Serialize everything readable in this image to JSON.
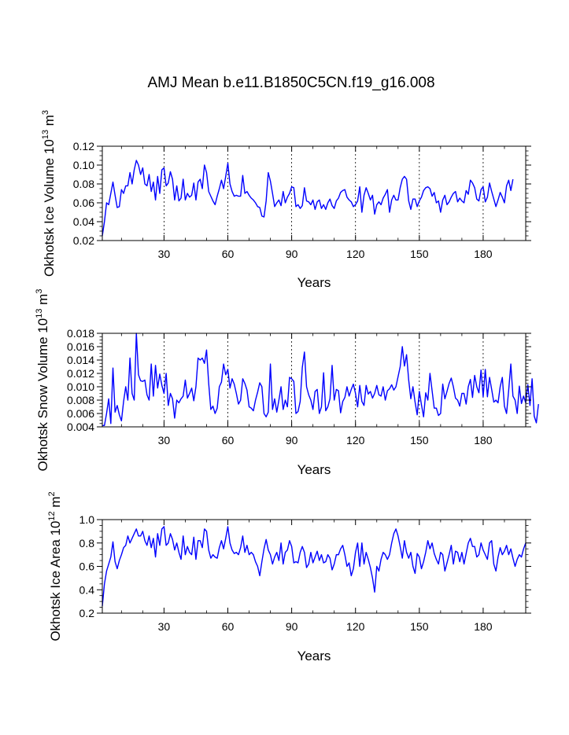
{
  "title": "AMJ Mean b.e11.B1850C5CN.f19_g16.008",
  "chart_data": [
    {
      "type": "line",
      "name": "ice-volume",
      "xlabel": "Years",
      "ylabel": "Okhotsk Ice Volume 10",
      "ylabel_exp": "13",
      "ylabel_unit": "m",
      "ylabel_unit_exp": "3",
      "xlim": [
        1,
        200
      ],
      "ylim": [
        0.02,
        0.12
      ],
      "xticks": [
        30,
        60,
        90,
        120,
        150,
        180
      ],
      "xtick_labels": [
        "30",
        "60",
        "90",
        "120",
        "150",
        "180"
      ],
      "yticks": [
        0.02,
        0.04,
        0.06,
        0.08,
        0.1,
        0.12
      ],
      "ytick_labels": [
        "0.02",
        "0.04",
        "0.06",
        "0.08",
        "0.10",
        "0.12"
      ],
      "color": "#0000ff",
      "x_start": 1,
      "values": [
        0.025,
        0.04,
        0.06,
        0.058,
        0.07,
        0.082,
        0.068,
        0.055,
        0.056,
        0.074,
        0.07,
        0.078,
        0.078,
        0.092,
        0.08,
        0.095,
        0.105,
        0.1,
        0.09,
        0.097,
        0.08,
        0.078,
        0.09,
        0.072,
        0.082,
        0.063,
        0.088,
        0.07,
        0.095,
        0.097,
        0.078,
        0.081,
        0.093,
        0.085,
        0.063,
        0.078,
        0.062,
        0.065,
        0.085,
        0.063,
        0.07,
        0.066,
        0.068,
        0.081,
        0.063,
        0.082,
        0.085,
        0.075,
        0.1,
        0.092,
        0.072,
        0.067,
        0.062,
        0.058,
        0.067,
        0.075,
        0.084,
        0.075,
        0.088,
        0.102,
        0.08,
        0.072,
        0.067,
        0.068,
        0.067,
        0.067,
        0.089,
        0.07,
        0.072,
        0.068,
        0.065,
        0.063,
        0.06,
        0.056,
        0.055,
        0.046,
        0.045,
        0.062,
        0.092,
        0.083,
        0.07,
        0.056,
        0.06,
        0.063,
        0.057,
        0.072,
        0.06,
        0.066,
        0.07,
        0.077,
        0.076,
        0.056,
        0.058,
        0.054,
        0.057,
        0.076,
        0.062,
        0.061,
        0.058,
        0.063,
        0.053,
        0.061,
        0.063,
        0.054,
        0.058,
        0.053,
        0.06,
        0.064,
        0.057,
        0.054,
        0.062,
        0.065,
        0.071,
        0.073,
        0.074,
        0.066,
        0.063,
        0.061,
        0.056,
        0.058,
        0.062,
        0.077,
        0.05,
        0.068,
        0.076,
        0.07,
        0.063,
        0.068,
        0.048,
        0.058,
        0.061,
        0.058,
        0.065,
        0.069,
        0.074,
        0.05,
        0.063,
        0.068,
        0.063,
        0.063,
        0.076,
        0.085,
        0.088,
        0.085,
        0.062,
        0.053,
        0.064,
        0.064,
        0.056,
        0.062,
        0.066,
        0.073,
        0.076,
        0.077,
        0.075,
        0.067,
        0.071,
        0.06,
        0.062,
        0.05,
        0.063,
        0.068,
        0.058,
        0.061,
        0.066,
        0.07,
        0.072,
        0.061,
        0.065,
        0.062,
        0.06,
        0.073,
        0.069,
        0.084,
        0.081,
        0.076,
        0.064,
        0.062,
        0.074,
        0.077,
        0.061,
        0.066,
        0.081,
        0.072,
        0.064,
        0.056,
        0.063,
        0.071,
        0.066,
        0.06,
        0.078,
        0.084,
        0.073,
        0.085
      ],
      "gridlines": "dashed vertical at x ticks"
    },
    {
      "type": "line",
      "name": "snow-volume",
      "xlabel": "Years",
      "ylabel": "Okhotsk Snow Volume 10",
      "ylabel_exp": "13",
      "ylabel_unit": "m",
      "ylabel_unit_exp": "3",
      "xlim": [
        1,
        200
      ],
      "ylim": [
        0.004,
        0.018
      ],
      "xticks": [
        30,
        60,
        90,
        120,
        150,
        180
      ],
      "xtick_labels": [
        "30",
        "60",
        "90",
        "120",
        "150",
        "180"
      ],
      "yticks": [
        0.004,
        0.006,
        0.008,
        0.01,
        0.012,
        0.014,
        0.016,
        0.018
      ],
      "ytick_labels": [
        "0.004",
        "0.006",
        "0.008",
        "0.010",
        "0.012",
        "0.014",
        "0.016",
        "0.018"
      ],
      "color": "#0000ff",
      "x_start": 1,
      "values": [
        0.0042,
        0.0042,
        0.006,
        0.0082,
        0.0045,
        0.0128,
        0.0062,
        0.0072,
        0.0058,
        0.0049,
        0.0078,
        0.01,
        0.008,
        0.0143,
        0.009,
        0.008,
        0.018,
        0.0118,
        0.0109,
        0.0108,
        0.011,
        0.0088,
        0.008,
        0.0134,
        0.0086,
        0.0132,
        0.0098,
        0.0119,
        0.0102,
        0.009,
        0.012,
        0.0072,
        0.009,
        0.0082,
        0.0053,
        0.008,
        0.0076,
        0.0082,
        0.0086,
        0.011,
        0.0083,
        0.009,
        0.0098,
        0.0079,
        0.01,
        0.0143,
        0.014,
        0.0143,
        0.0135,
        0.0155,
        0.0105,
        0.0066,
        0.0071,
        0.006,
        0.0068,
        0.01,
        0.0107,
        0.0134,
        0.0118,
        0.0126,
        0.0098,
        0.0112,
        0.0104,
        0.009,
        0.0074,
        0.008,
        0.0112,
        0.0105,
        0.0095,
        0.007,
        0.0068,
        0.0064,
        0.008,
        0.0092,
        0.0106,
        0.01,
        0.006,
        0.0055,
        0.0062,
        0.0134,
        0.0066,
        0.0082,
        0.0062,
        0.008,
        0.01,
        0.0066,
        0.008,
        0.007,
        0.0114,
        0.0112,
        0.0108,
        0.006,
        0.0063,
        0.0078,
        0.0129,
        0.0152,
        0.01,
        0.0088,
        0.008,
        0.0066,
        0.0093,
        0.0096,
        0.006,
        0.007,
        0.0121,
        0.0064,
        0.007,
        0.0082,
        0.0132,
        0.008,
        0.0096,
        0.0094,
        0.0061,
        0.0078,
        0.0084,
        0.01,
        0.0086,
        0.0096,
        0.0104,
        0.009,
        0.007,
        0.0102,
        0.0078,
        0.0072,
        0.0102,
        0.0089,
        0.0093,
        0.0083,
        0.009,
        0.0102,
        0.0088,
        0.0086,
        0.01,
        0.008,
        0.0094,
        0.0097,
        0.0103,
        0.0095,
        0.01,
        0.0115,
        0.013,
        0.016,
        0.0131,
        0.0148,
        0.011,
        0.0082,
        0.01,
        0.0077,
        0.0058,
        0.0093,
        0.0073,
        0.0055,
        0.0091,
        0.008,
        0.012,
        0.0094,
        0.0068,
        0.0068,
        0.0057,
        0.006,
        0.0104,
        0.0082,
        0.0093,
        0.0105,
        0.0113,
        0.01,
        0.0083,
        0.008,
        0.0071,
        0.009,
        0.009,
        0.0074,
        0.01,
        0.0111,
        0.0084,
        0.0117,
        0.01,
        0.0091,
        0.0125,
        0.0085,
        0.0126,
        0.0085,
        0.0114,
        0.0096,
        0.0077,
        0.008,
        0.0076,
        0.01,
        0.0114,
        0.0071,
        0.006,
        0.0095,
        0.0134,
        0.0086,
        0.008,
        0.006,
        0.0101,
        0.0075,
        0.0086,
        0.0076,
        0.0103,
        0.0072,
        0.0112,
        0.0056,
        0.0046,
        0.0074
      ],
      "gridlines": "dashed vertical at x ticks"
    },
    {
      "type": "line",
      "name": "ice-area",
      "xlabel": "Years",
      "ylabel": "Okhotsk Ice Area 10",
      "ylabel_exp": "12",
      "ylabel_unit": "m",
      "ylabel_unit_exp": "2",
      "xlim": [
        1,
        200
      ],
      "ylim": [
        0.2,
        1.0
      ],
      "xticks": [
        30,
        60,
        90,
        120,
        150,
        180
      ],
      "xtick_labels": [
        "30",
        "60",
        "90",
        "120",
        "150",
        "180"
      ],
      "yticks": [
        0.2,
        0.4,
        0.6,
        0.8,
        1.0
      ],
      "ytick_labels": [
        "0.2",
        "0.4",
        "0.6",
        "0.8",
        "1.0"
      ],
      "color": "#0000ff",
      "x_start": 1,
      "values": [
        0.26,
        0.45,
        0.56,
        0.62,
        0.68,
        0.81,
        0.64,
        0.58,
        0.65,
        0.7,
        0.76,
        0.78,
        0.86,
        0.8,
        0.84,
        0.88,
        0.92,
        0.86,
        0.86,
        0.9,
        0.82,
        0.78,
        0.86,
        0.76,
        0.84,
        0.68,
        0.88,
        0.78,
        0.92,
        0.94,
        0.78,
        0.8,
        0.88,
        0.83,
        0.74,
        0.8,
        0.72,
        0.66,
        0.86,
        0.7,
        0.77,
        0.72,
        0.7,
        0.85,
        0.66,
        0.82,
        0.82,
        0.76,
        0.92,
        0.9,
        0.74,
        0.67,
        0.7,
        0.68,
        0.67,
        0.76,
        0.82,
        0.75,
        0.84,
        0.94,
        0.8,
        0.74,
        0.71,
        0.72,
        0.7,
        0.76,
        0.86,
        0.72,
        0.78,
        0.7,
        0.72,
        0.7,
        0.64,
        0.6,
        0.52,
        0.64,
        0.75,
        0.83,
        0.74,
        0.7,
        0.62,
        0.68,
        0.72,
        0.65,
        0.8,
        0.62,
        0.72,
        0.74,
        0.82,
        0.77,
        0.63,
        0.64,
        0.63,
        0.72,
        0.77,
        0.72,
        0.59,
        0.62,
        0.72,
        0.63,
        0.68,
        0.73,
        0.65,
        0.7,
        0.63,
        0.64,
        0.7,
        0.67,
        0.57,
        0.62,
        0.7,
        0.7,
        0.75,
        0.78,
        0.7,
        0.6,
        0.63,
        0.52,
        0.58,
        0.72,
        0.8,
        0.6,
        0.8,
        0.62,
        0.72,
        0.66,
        0.59,
        0.5,
        0.38,
        0.6,
        0.56,
        0.66,
        0.72,
        0.7,
        0.66,
        0.7,
        0.8,
        0.88,
        0.92,
        0.86,
        0.77,
        0.67,
        0.82,
        0.72,
        0.67,
        0.72,
        0.6,
        0.54,
        0.71,
        0.68,
        0.58,
        0.64,
        0.72,
        0.82,
        0.75,
        0.8,
        0.71,
        0.66,
        0.62,
        0.72,
        0.7,
        0.56,
        0.63,
        0.7,
        0.78,
        0.62,
        0.73,
        0.72,
        0.64,
        0.72,
        0.62,
        0.71,
        0.8,
        0.84,
        0.77,
        0.77,
        0.68,
        0.7,
        0.8,
        0.74,
        0.7,
        0.66,
        0.8,
        0.82,
        0.62,
        0.56,
        0.68,
        0.76,
        0.7,
        0.73,
        0.78,
        0.7,
        0.75,
        0.67,
        0.6,
        0.66,
        0.7,
        0.68,
        0.75,
        0.8
      ]
    }
  ]
}
